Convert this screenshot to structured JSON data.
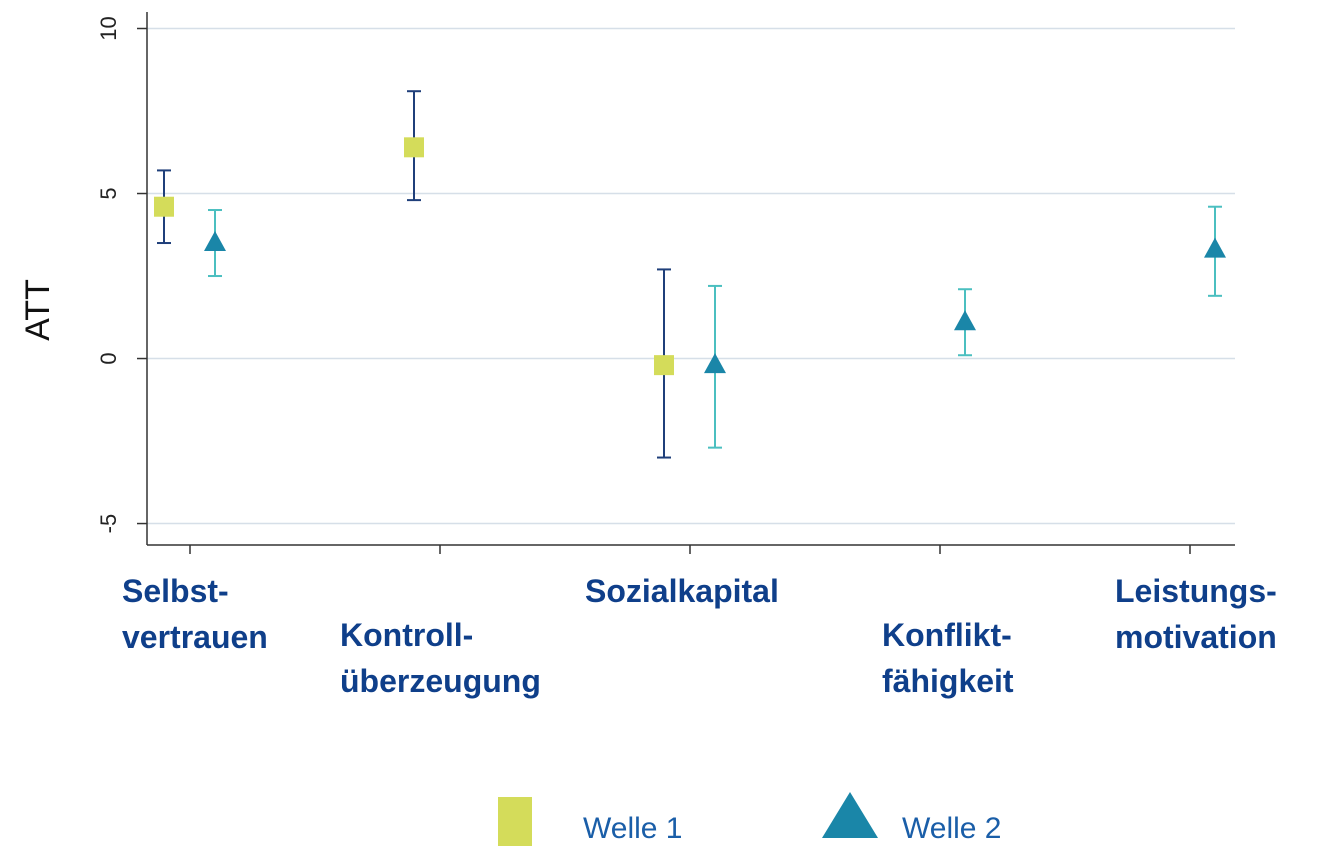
{
  "chart_data": {
    "type": "errorbar",
    "y_label": "ATT",
    "categories": [
      "Selbst-\nvertrauen",
      "Kontroll-\nüberzeugung",
      "Sozialkapital",
      "Konflikt-\nfähigkeit",
      "Leistungs-\nmotivation"
    ],
    "series": [
      {
        "name": "Welle 1",
        "marker": "square",
        "color": "#d4dc5a",
        "error_color": "#1f3f7a",
        "values": [
          4.6,
          6.4,
          -0.2,
          null,
          null
        ],
        "lower": [
          3.5,
          4.8,
          -3.0,
          null,
          null
        ],
        "upper": [
          5.7,
          8.1,
          2.7,
          null,
          null
        ]
      },
      {
        "name": "Welle 2",
        "marker": "triangle",
        "color": "#1a86a8",
        "error_color": "#4bbfc0",
        "values": [
          3.5,
          null,
          -0.2,
          1.1,
          3.3
        ],
        "lower": [
          2.5,
          null,
          -2.7,
          0.1,
          1.9
        ],
        "upper": [
          4.5,
          null,
          2.2,
          2.1,
          4.6
        ]
      }
    ],
    "ylim": [
      -5.65,
      10.5
    ],
    "yticks": [
      -5,
      0,
      5,
      10
    ],
    "grid": true
  }
}
